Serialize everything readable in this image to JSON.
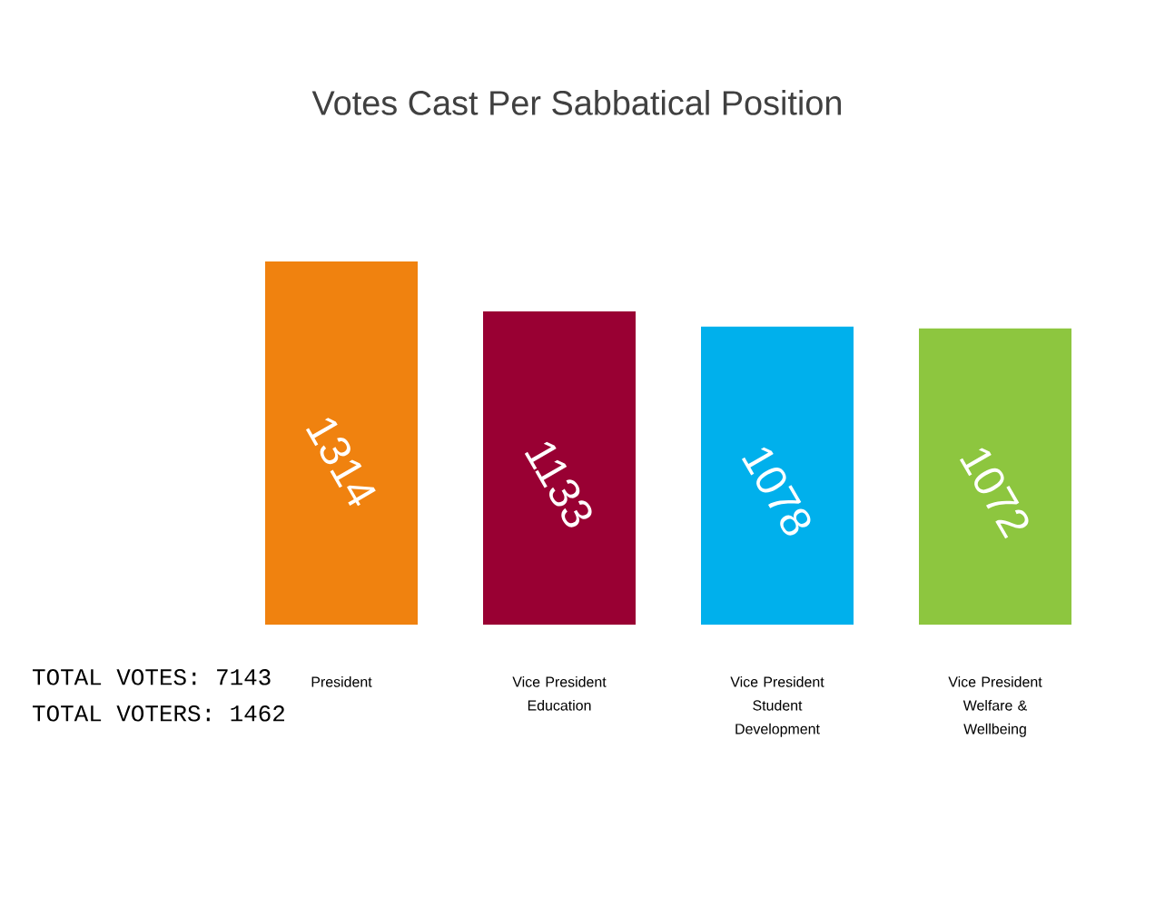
{
  "chart_data": {
    "type": "bar",
    "title": "Votes Cast Per Sabbatical Position",
    "categories": [
      "President",
      "Vice President Education",
      "Vice President Student Development",
      "Vice President Welfare & Wellbeing"
    ],
    "values": [
      1314,
      1133,
      1078,
      1072
    ],
    "colors": [
      "#f0820f",
      "#990033",
      "#00b0ec",
      "#8dc63f"
    ],
    "data_labels": true,
    "annotations": [
      "TOTAL VOTES: 7143",
      "TOTAL VOTERS: 1462"
    ]
  }
}
